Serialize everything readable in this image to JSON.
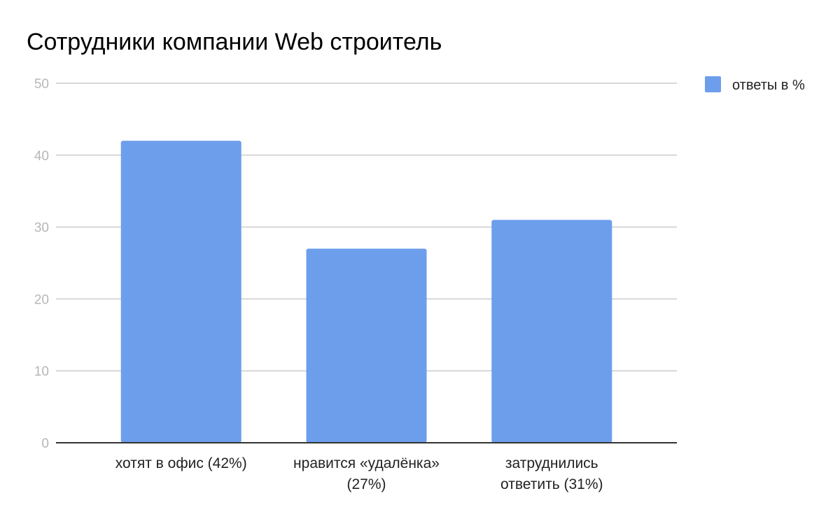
{
  "chart_data": {
    "type": "bar",
    "title": "Сотрудники компании Web строитель",
    "categories": [
      [
        "хотят в офис (42%)"
      ],
      [
        "нравится «удалёнка»",
        "(27%)"
      ],
      [
        "затруднились",
        "ответить (31%)"
      ]
    ],
    "series": [
      {
        "name": "ответы в %",
        "values": [
          42,
          27,
          31
        ],
        "color": "#6d9eeb"
      }
    ],
    "xlabel": "",
    "ylabel": "",
    "ylim": [
      0,
      50
    ],
    "yticks": [
      0,
      10,
      20,
      30,
      40,
      50
    ],
    "grid": true,
    "legend_position": "right"
  }
}
